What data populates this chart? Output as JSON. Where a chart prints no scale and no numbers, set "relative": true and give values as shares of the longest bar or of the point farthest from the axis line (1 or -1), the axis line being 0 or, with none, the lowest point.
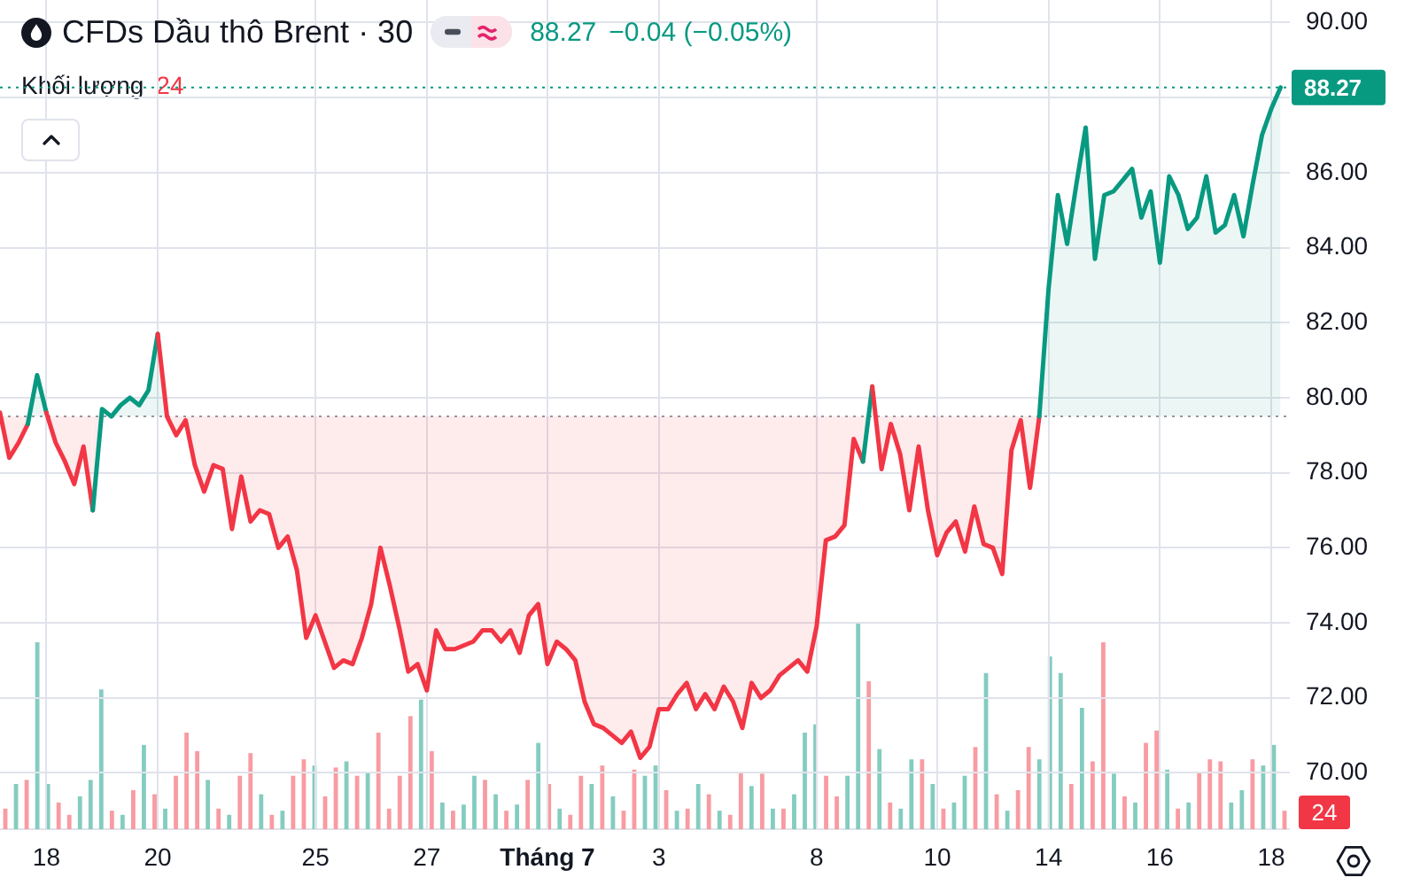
{
  "chart_data": [
    {
      "type": "area",
      "title": "CFDs Dầu thô Brent · 30",
      "annotations": [
        "88.27",
        "−0.04 (−0.05%)"
      ],
      "categories": [
        null,
        null,
        null,
        null,
        null,
        "18",
        null,
        null,
        null,
        null,
        null,
        null,
        null,
        null,
        null,
        null,
        null,
        "20",
        null,
        null,
        null,
        null,
        null,
        null,
        null,
        null,
        null,
        null,
        null,
        null,
        null,
        null,
        null,
        null,
        "25",
        null,
        null,
        null,
        null,
        null,
        null,
        null,
        null,
        null,
        null,
        null,
        "27",
        null,
        null,
        null,
        null,
        null,
        null,
        null,
        null,
        null,
        null,
        null,
        null,
        "Tháng 7",
        null,
        null,
        null,
        null,
        null,
        null,
        null,
        null,
        null,
        null,
        null,
        "3",
        null,
        null,
        null,
        null,
        null,
        null,
        null,
        null,
        null,
        null,
        null,
        null,
        null,
        null,
        null,
        null,
        "8",
        null,
        null,
        null,
        null,
        null,
        null,
        null,
        null,
        null,
        null,
        null,
        null,
        "10",
        null,
        null,
        null,
        null,
        null,
        null,
        null,
        null,
        null,
        null,
        null,
        "14",
        null,
        null,
        null,
        null,
        null,
        null,
        null,
        null,
        null,
        null,
        null,
        "16",
        null,
        null,
        null,
        null,
        null,
        null,
        null,
        null,
        null,
        null,
        null,
        "18",
        null,
        null
      ],
      "series": [
        {
          "values": [
            79.6,
            78.4,
            78.8,
            79.3,
            80.6,
            79.6,
            78.8,
            78.3,
            77.7,
            78.7,
            77.0,
            79.7,
            79.5,
            79.8,
            80.0,
            79.8,
            80.2,
            81.7,
            79.5,
            79.0,
            79.4,
            78.2,
            77.5,
            78.2,
            78.1,
            76.5,
            77.9,
            76.7,
            77.0,
            76.9,
            76.0,
            76.3,
            75.4,
            73.6,
            74.2,
            73.5,
            72.8,
            73.0,
            72.9,
            73.6,
            74.5,
            76.0,
            75.0,
            73.9,
            72.7,
            72.9,
            72.2,
            73.8,
            73.3,
            73.3,
            73.4,
            73.5,
            73.8,
            73.8,
            73.5,
            73.8,
            73.2,
            74.2,
            74.5,
            72.9,
            73.5,
            73.3,
            73.0,
            71.9,
            71.3,
            71.2,
            71.0,
            70.8,
            71.1,
            70.4,
            70.7,
            71.7,
            71.7,
            72.1,
            72.4,
            71.7,
            72.1,
            71.7,
            72.3,
            71.9,
            71.2,
            72.4,
            72.0,
            72.2,
            72.6,
            72.8,
            73.0,
            72.7,
            73.9,
            76.2,
            76.3,
            76.6,
            78.9,
            78.3,
            80.3,
            78.1,
            79.3,
            78.5,
            77.0,
            78.7,
            77.0,
            75.8,
            76.4,
            76.7,
            75.9,
            77.1,
            76.1,
            76.0,
            75.3,
            78.6,
            79.4,
            77.6,
            79.5,
            82.9,
            85.4,
            84.1,
            85.7,
            87.2,
            83.7,
            85.4,
            85.5,
            85.8,
            86.1,
            84.8,
            85.5,
            83.6,
            85.9,
            85.4,
            84.5,
            84.8,
            85.9,
            84.4,
            84.6,
            85.4,
            84.3,
            85.7,
            87.0,
            87.7,
            88.27,
            null
          ],
          "colors": [
            "#089981",
            "#f23645",
            "#f23645",
            "#f23645",
            "#089981",
            "#089981",
            "#f23645",
            "#f23645",
            "#f23645",
            "#f23645",
            "#f23645",
            "#089981",
            "#089981",
            "#089981",
            "#089981",
            "#089981",
            "#089981",
            "#089981",
            "#f23645",
            "#f23645",
            "#f23645",
            "#f23645",
            "#f23645",
            "#f23645",
            "#f23645",
            "#f23645",
            "#f23645",
            "#f23645",
            "#f23645",
            "#f23645",
            "#f23645",
            "#f23645",
            "#f23645",
            "#f23645",
            "#f23645",
            "#f23645",
            "#f23645",
            "#f23645",
            "#f23645",
            "#f23645",
            "#f23645",
            "#f23645",
            "#f23645",
            "#f23645",
            "#f23645",
            "#f23645",
            "#f23645",
            "#f23645",
            "#f23645",
            "#f23645",
            "#f23645",
            "#f23645",
            "#f23645",
            "#f23645",
            "#f23645",
            "#f23645",
            "#f23645",
            "#f23645",
            "#f23645",
            "#f23645",
            "#f23645",
            "#f23645",
            "#f23645",
            "#f23645",
            "#f23645",
            "#f23645",
            "#f23645",
            "#f23645",
            "#f23645",
            "#f23645",
            "#f23645",
            "#f23645",
            "#f23645",
            "#f23645",
            "#f23645",
            "#f23645",
            "#f23645",
            "#f23645",
            "#f23645",
            "#f23645",
            "#f23645",
            "#f23645",
            "#f23645",
            "#f23645",
            "#f23645",
            "#f23645",
            "#f23645",
            "#f23645",
            "#f23645",
            "#f23645",
            "#f23645",
            "#f23645",
            "#f23645",
            "#f23645",
            "#089981",
            "#f23645",
            "#f23645",
            "#f23645",
            "#f23645",
            "#f23645",
            "#f23645",
            "#f23645",
            "#f23645",
            "#f23645",
            "#f23645",
            "#f23645",
            "#f23645",
            "#f23645",
            "#f23645",
            "#f23645",
            "#f23645",
            "#f23645",
            "#f23645",
            "#089981",
            "#089981",
            "#089981",
            "#089981",
            "#089981",
            "#089981",
            "#089981",
            "#089981",
            "#089981",
            "#089981",
            "#089981",
            "#089981",
            "#089981",
            "#089981",
            "#089981",
            "#089981",
            "#089981",
            "#089981",
            "#089981",
            "#089981",
            "#089981",
            "#089981",
            "#089981",
            "#089981",
            "#089981",
            "#089981",
            "#089981"
          ]
        }
      ],
      "ylim": [
        68.5,
        90.6
      ],
      "yticks": [
        {
          "value": 70,
          "label": "70.00"
        },
        {
          "value": 72,
          "label": "72.00"
        },
        {
          "value": 74,
          "label": "74.00"
        },
        {
          "value": 76,
          "label": "76.00"
        },
        {
          "value": 78,
          "label": "78.00"
        },
        {
          "value": 80,
          "label": "80.00"
        },
        {
          "value": 82,
          "label": "82.00"
        },
        {
          "value": 84,
          "label": "84.00"
        },
        {
          "value": 86,
          "label": "86.00"
        },
        {
          "value": 88,
          "label": null
        },
        {
          "value": 90,
          "label": "90.00"
        }
      ],
      "grid": true,
      "ref_lines": [
        {
          "axis": "y",
          "value": 79.5,
          "color": "#9598a1",
          "line_style": "dotted"
        },
        {
          "axis": "y",
          "value": 88.27,
          "label": "88.27",
          "color": "#089981",
          "line_style": "dotted"
        }
      ]
    },
    {
      "type": "bar",
      "relative": true,
      "legend": "top left",
      "annotations": [
        "24"
      ],
      "categories": [
        null,
        null,
        null,
        null,
        null,
        null,
        null,
        null,
        null,
        null,
        null,
        null,
        null,
        null,
        null,
        null,
        null,
        null,
        null,
        null,
        null,
        null,
        null,
        null,
        null,
        null,
        null,
        null,
        null,
        null,
        null,
        null,
        null,
        null,
        null,
        null,
        null,
        null,
        null,
        null,
        null,
        null,
        null,
        null,
        null,
        null,
        null,
        null,
        null,
        null,
        null,
        null,
        null,
        null,
        null,
        null,
        null,
        null,
        null,
        null,
        null,
        null,
        null,
        null,
        null,
        null,
        null,
        null,
        null,
        null,
        null,
        null,
        null,
        null,
        null,
        null,
        null,
        null,
        null,
        null,
        null,
        null,
        null,
        null,
        null,
        null,
        null,
        null,
        null,
        null,
        null,
        null,
        null,
        null,
        null,
        null,
        null,
        null,
        null,
        null,
        null,
        null,
        null,
        null,
        null,
        null,
        null,
        null,
        null,
        null,
        null,
        null,
        null,
        null,
        null,
        null,
        null,
        null,
        null,
        null,
        null
      ],
      "series": [
        {
          "name": "Khối lượng",
          "values": [
            0.1,
            0.22,
            0.24,
            0.91,
            0.22,
            0.13,
            0.07,
            0.16,
            0.24,
            0.68,
            0.09,
            0.07,
            0.19,
            0.41,
            0.17,
            0.1,
            0.26,
            0.47,
            0.38,
            0.24,
            0.1,
            0.07,
            0.26,
            0.37,
            0.17,
            0.07,
            0.09,
            0.26,
            0.34,
            0.31,
            0.16,
            0.3,
            0.33,
            0.26,
            0.28,
            0.47,
            0.1,
            0.26,
            0.55,
            0.63,
            0.38,
            0.13,
            0.09,
            0.12,
            0.26,
            0.24,
            0.17,
            0.09,
            0.12,
            0.24,
            0.42,
            0.22,
            0.1,
            0.07,
            0.26,
            0.22,
            0.31,
            0.16,
            0.09,
            0.29,
            0.26,
            0.31,
            0.19,
            0.09,
            0.1,
            0.22,
            0.17,
            0.09,
            0.07,
            0.28,
            0.21,
            0.27,
            0.1,
            0.1,
            0.17,
            0.47,
            0.51,
            0.26,
            0.16,
            0.26,
            1,
            0.72,
            0.39,
            0.13,
            0.1,
            0.34,
            0.34,
            0.22,
            0.1,
            0.13,
            0.26,
            0.4,
            0.76,
            0.17,
            0.09,
            0.19,
            0.4,
            0.34,
            0.84,
            0.76,
            0.22,
            0.59,
            0.33,
            0.91,
            0.27,
            0.16,
            0.13,
            0.42,
            0.48,
            0.29,
            0.1,
            0.13,
            0.28,
            0.34,
            0.33,
            0.13,
            0.19,
            0.34,
            0.31,
            0.41,
            0.09
          ],
          "colors": [
            "#f89ba2",
            "#84ccc0",
            "#f89ba2",
            "#84ccc0",
            "#84ccc0",
            "#f89ba2",
            "#f89ba2",
            "#84ccc0",
            "#84ccc0",
            "#84ccc0",
            "#f89ba2",
            "#84ccc0",
            "#f89ba2",
            "#84ccc0",
            "#f89ba2",
            "#84ccc0",
            "#f89ba2",
            "#f89ba2",
            "#f89ba2",
            "#84ccc0",
            "#f89ba2",
            "#84ccc0",
            "#f89ba2",
            "#f89ba2",
            "#84ccc0",
            "#f89ba2",
            "#84ccc0",
            "#f89ba2",
            "#f89ba2",
            "#84ccc0",
            "#f89ba2",
            "#f89ba2",
            "#84ccc0",
            "#f89ba2",
            "#84ccc0",
            "#f89ba2",
            "#f89ba2",
            "#f89ba2",
            "#f89ba2",
            "#84ccc0",
            "#f89ba2",
            "#84ccc0",
            "#f89ba2",
            "#84ccc0",
            "#84ccc0",
            "#f89ba2",
            "#84ccc0",
            "#f89ba2",
            "#84ccc0",
            "#f89ba2",
            "#84ccc0",
            "#f89ba2",
            "#84ccc0",
            "#f89ba2",
            "#f89ba2",
            "#84ccc0",
            "#f89ba2",
            "#84ccc0",
            "#f89ba2",
            "#f89ba2",
            "#84ccc0",
            "#84ccc0",
            "#f89ba2",
            "#84ccc0",
            "#f89ba2",
            "#84ccc0",
            "#f89ba2",
            "#84ccc0",
            "#f89ba2",
            "#f89ba2",
            "#84ccc0",
            "#f89ba2",
            "#84ccc0",
            "#f89ba2",
            "#84ccc0",
            "#84ccc0",
            "#84ccc0",
            "#f89ba2",
            "#f89ba2",
            "#84ccc0",
            "#84ccc0",
            "#f89ba2",
            "#84ccc0",
            "#f89ba2",
            "#84ccc0",
            "#84ccc0",
            "#f89ba2",
            "#84ccc0",
            "#f89ba2",
            "#84ccc0",
            "#84ccc0",
            "#f89ba2",
            "#84ccc0",
            "#f89ba2",
            "#84ccc0",
            "#f89ba2",
            "#f89ba2",
            "#84ccc0",
            "#84ccc0",
            "#84ccc0",
            "#f89ba2",
            "#84ccc0",
            "#f89ba2",
            "#f89ba2",
            "#84ccc0",
            "#f89ba2",
            "#84ccc0",
            "#f89ba2",
            "#f89ba2",
            "#84ccc0",
            "#f89ba2",
            "#84ccc0",
            "#f89ba2",
            "#f89ba2",
            "#f89ba2",
            "#84ccc0",
            "#84ccc0",
            "#f89ba2",
            "#84ccc0",
            "#84ccc0",
            "#f89ba2"
          ]
        }
      ]
    }
  ]
}
